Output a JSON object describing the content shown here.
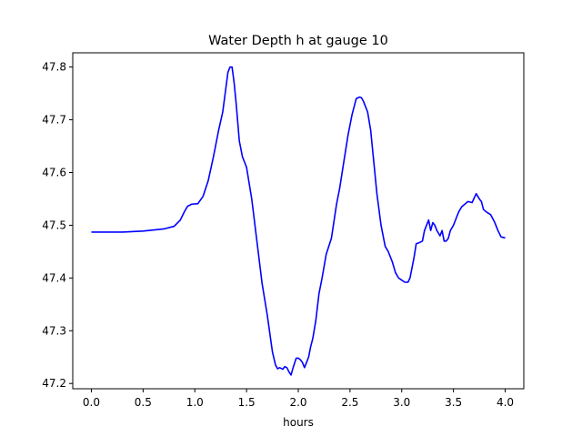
{
  "chart_data": {
    "type": "line",
    "title": "Water Depth h at gauge 10",
    "xlabel": "hours",
    "ylabel": "",
    "xlim": [
      -0.18,
      4.18
    ],
    "ylim": [
      47.19,
      47.827
    ],
    "xticks": [
      0.0,
      0.5,
      1.0,
      1.5,
      2.0,
      2.5,
      3.0,
      3.5,
      4.0
    ],
    "xtick_labels": [
      "0.0",
      "0.5",
      "1.0",
      "1.5",
      "2.0",
      "2.5",
      "3.0",
      "3.5",
      "4.0"
    ],
    "yticks": [
      47.2,
      47.3,
      47.4,
      47.5,
      47.6,
      47.7,
      47.8
    ],
    "ytick_labels": [
      "47.2",
      "47.3",
      "47.4",
      "47.5",
      "47.6",
      "47.7",
      "47.8"
    ],
    "grid": false,
    "series": [
      {
        "color": "#0000ff",
        "x": [
          0.0,
          0.3,
          0.5,
          0.7,
          0.8,
          0.86,
          0.9,
          0.93,
          0.97,
          1.03,
          1.08,
          1.13,
          1.18,
          1.23,
          1.27,
          1.3,
          1.32,
          1.34,
          1.36,
          1.38,
          1.4,
          1.43,
          1.46,
          1.5,
          1.55,
          1.6,
          1.65,
          1.7,
          1.75,
          1.78,
          1.8,
          1.82,
          1.85,
          1.87,
          1.89,
          1.91,
          1.93,
          1.95,
          1.98,
          2.0,
          2.02,
          2.04,
          2.06,
          2.08,
          2.1,
          2.12,
          2.14,
          2.17,
          2.2,
          2.23,
          2.27,
          2.32,
          2.37,
          2.4,
          2.44,
          2.48,
          2.52,
          2.56,
          2.59,
          2.61,
          2.63,
          2.65,
          2.67,
          2.7,
          2.73,
          2.76,
          2.8,
          2.84,
          2.87,
          2.91,
          2.94,
          2.97,
          3.0,
          3.03,
          3.06,
          3.08,
          3.1,
          3.12,
          3.14,
          3.17,
          3.2,
          3.22,
          3.24,
          3.26,
          3.28,
          3.3,
          3.32,
          3.34,
          3.37,
          3.39,
          3.41,
          3.43,
          3.45,
          3.47,
          3.5,
          3.52,
          3.55,
          3.58,
          3.61,
          3.64,
          3.68,
          3.72,
          3.75,
          3.77,
          3.79,
          3.82,
          3.86,
          3.9,
          3.93,
          3.96,
          4.0
        ],
        "y": [
          47.487,
          47.487,
          47.489,
          47.493,
          47.498,
          47.51,
          47.526,
          47.536,
          47.54,
          47.541,
          47.555,
          47.585,
          47.63,
          47.68,
          47.715,
          47.76,
          47.79,
          47.8,
          47.8,
          47.77,
          47.73,
          47.66,
          47.63,
          47.61,
          47.55,
          47.47,
          47.39,
          47.33,
          47.26,
          47.235,
          47.228,
          47.23,
          47.227,
          47.232,
          47.23,
          47.222,
          47.216,
          47.23,
          47.248,
          47.248,
          47.245,
          47.24,
          47.23,
          47.24,
          47.25,
          47.27,
          47.285,
          47.32,
          47.37,
          47.4,
          47.445,
          47.475,
          47.54,
          47.57,
          47.62,
          47.67,
          47.71,
          47.74,
          47.743,
          47.742,
          47.735,
          47.725,
          47.715,
          47.68,
          47.62,
          47.56,
          47.5,
          47.46,
          47.45,
          47.43,
          47.41,
          47.4,
          47.396,
          47.392,
          47.392,
          47.4,
          47.42,
          47.44,
          47.465,
          47.467,
          47.47,
          47.49,
          47.5,
          47.51,
          47.49,
          47.505,
          47.5,
          47.49,
          47.48,
          47.49,
          47.47,
          47.47,
          47.475,
          47.49,
          47.5,
          47.51,
          47.525,
          47.535,
          47.54,
          47.545,
          47.543,
          47.56,
          47.55,
          47.545,
          47.53,
          47.525,
          47.52,
          47.505,
          47.49,
          47.478,
          47.476
        ]
      }
    ]
  }
}
